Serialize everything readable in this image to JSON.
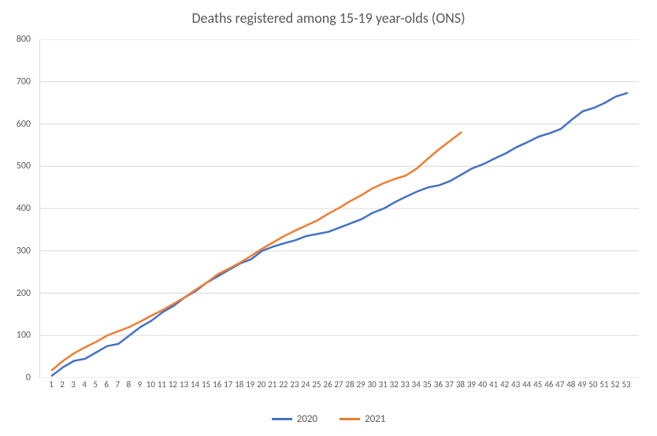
{
  "chart": {
    "type": "line",
    "title": "Deaths registered among 15-19 year-olds (ONS)",
    "title_fontsize": 18,
    "title_color": "#595959",
    "background_color": "#ffffff",
    "grid_color": "#d9d9d9",
    "axis_label_color": "#595959",
    "axis_label_fontsize": 12,
    "y": {
      "min": 0,
      "max": 800,
      "step": 100
    },
    "x": {
      "categories": [
        1,
        2,
        3,
        4,
        5,
        6,
        7,
        8,
        9,
        10,
        11,
        12,
        13,
        14,
        15,
        16,
        17,
        18,
        19,
        20,
        21,
        22,
        23,
        24,
        25,
        26,
        27,
        28,
        29,
        30,
        31,
        32,
        33,
        34,
        35,
        36,
        37,
        38,
        39,
        40,
        41,
        42,
        43,
        44,
        45,
        46,
        47,
        48,
        49,
        50,
        51,
        52,
        53
      ]
    },
    "series": [
      {
        "name": "2020",
        "color": "#4472c4",
        "line_width": 2.5,
        "values": [
          5,
          25,
          40,
          45,
          60,
          75,
          80,
          100,
          120,
          135,
          155,
          170,
          190,
          205,
          225,
          240,
          255,
          270,
          280,
          300,
          310,
          318,
          325,
          335,
          340,
          345,
          355,
          365,
          375,
          390,
          400,
          415,
          428,
          440,
          450,
          455,
          465,
          480,
          495,
          505,
          518,
          530,
          545,
          557,
          570,
          578,
          588,
          610,
          630,
          638,
          650,
          665,
          673
        ]
      },
      {
        "name": "2021",
        "color": "#ed7d31",
        "line_width": 2.5,
        "values": [
          18,
          40,
          58,
          72,
          85,
          100,
          110,
          120,
          133,
          147,
          160,
          175,
          190,
          208,
          225,
          245,
          258,
          272,
          288,
          305,
          320,
          335,
          348,
          360,
          372,
          388,
          402,
          418,
          432,
          448,
          460,
          470,
          478,
          495,
          518,
          540,
          560,
          580
        ]
      }
    ],
    "legend": {
      "position": "bottom",
      "fontsize": 13
    }
  }
}
